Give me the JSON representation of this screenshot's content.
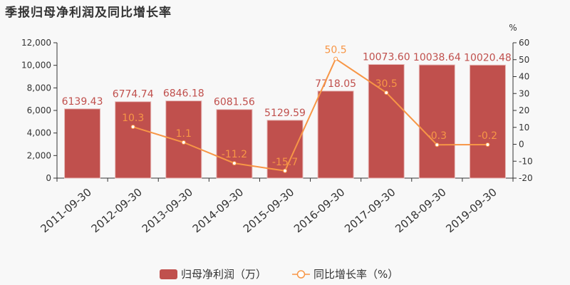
{
  "chart_data": {
    "type": "bar+line",
    "title": "季报归母净利润及同比增长率",
    "categories": [
      "2011-09-30",
      "2012-09-30",
      "2013-09-30",
      "2014-09-30",
      "2015-09-30",
      "2016-09-30",
      "2017-09-30",
      "2018-09-30",
      "2019-09-30"
    ],
    "series": [
      {
        "name": "归母净利润（万）",
        "type": "bar",
        "axis": "left",
        "color": "#c0504d",
        "values": [
          6139.43,
          6774.74,
          6846.18,
          6081.56,
          5129.59,
          7718.05,
          10073.6,
          10038.64,
          10020.48
        ],
        "labels": [
          "6139.43",
          "6774.74",
          "6846.18",
          "6081.56",
          "5129.59",
          "7718.05",
          "10073.60",
          "10038.64",
          "10020.48"
        ]
      },
      {
        "name": "同比增长率（%）",
        "type": "line",
        "axis": "right",
        "color": "#f79646",
        "values": [
          null,
          10.3,
          1.1,
          -11.2,
          -15.7,
          50.5,
          30.5,
          -0.3,
          -0.2
        ],
        "labels": [
          "",
          "10.3",
          "1.1",
          "-11.2",
          "-15.7",
          "50.5",
          "30.5",
          "-0.3",
          "-0.2"
        ]
      }
    ],
    "y_left": {
      "range": [
        0,
        12000
      ],
      "ticks": [
        "0",
        "2,000",
        "4,000",
        "6,000",
        "8,000",
        "10,000",
        "12,000"
      ]
    },
    "y_right": {
      "label": "%",
      "range": [
        -20,
        60
      ],
      "ticks": [
        "-20",
        "-10",
        "0",
        "10",
        "20",
        "30",
        "40",
        "50",
        "60"
      ]
    },
    "grid": false,
    "legend_position": "bottom"
  }
}
